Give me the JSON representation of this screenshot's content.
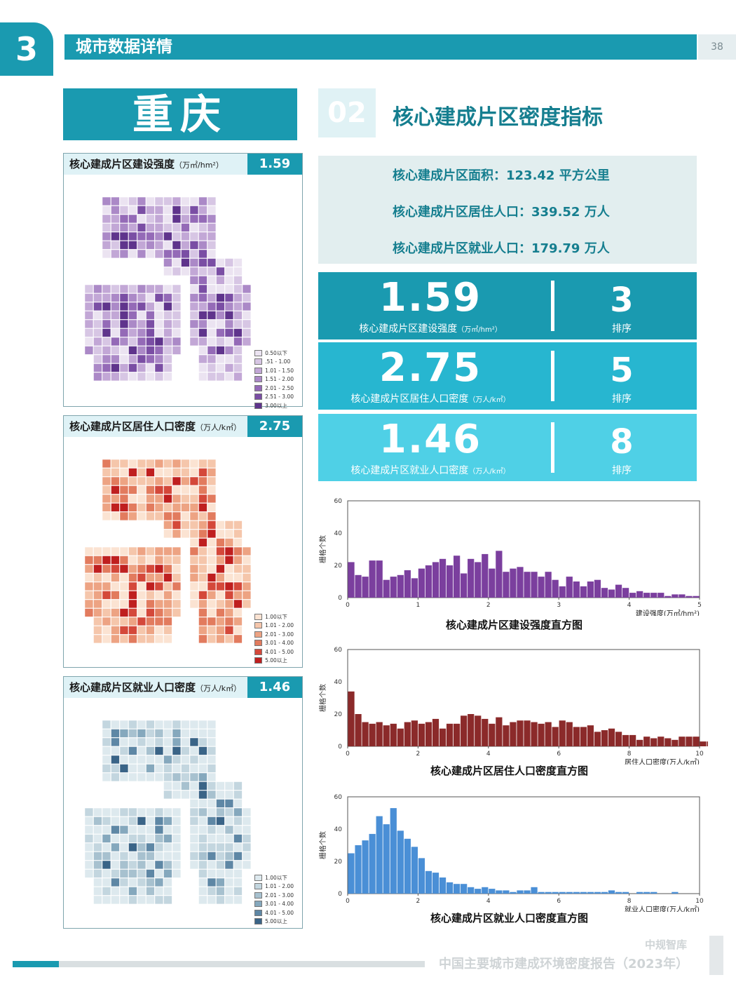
{
  "header": {
    "section_number": "3",
    "section_title": "城市数据详情",
    "page_number": "38"
  },
  "city": "重庆",
  "map_panels": [
    {
      "title": "核心建成片区建设强度",
      "unit": "（万㎡/hm²）",
      "value": "1.59",
      "color_scheme": "purple",
      "legend": [
        "0.50以下",
        ".51 - 1.00",
        "1.01 - 1.50",
        "1.51 - 2.00",
        "2.01 - 2.50",
        "2.51 - 3.00",
        "3.00以上"
      ],
      "colors": [
        "#ebe3f1",
        "#d7c6e4",
        "#c2a7d6",
        "#ab89c7",
        "#946ab7",
        "#7a4ea4",
        "#5f348c"
      ]
    },
    {
      "title": "核心建成片区居住人口密度",
      "unit": "（万人/k㎡）",
      "value": "2.75",
      "color_scheme": "red",
      "legend": [
        "1.00以下",
        "1.01 - 2.00",
        "2.01 - 3.00",
        "3.01 - 4.00",
        "4.01 - 5.00",
        "5.00以上"
      ],
      "colors": [
        "#fbe3d2",
        "#f5c6ab",
        "#eda383",
        "#e27b5e",
        "#d4483a",
        "#bf1f1f"
      ]
    },
    {
      "title": "核心建成片区就业人口密度",
      "unit": "（万人/k㎡）",
      "value": "1.46",
      "color_scheme": "blue",
      "legend": [
        "1.00以下",
        "1.01 - 2.00",
        "2.01 - 3.00",
        "3.01 - 4.00",
        "4.01 - 5.00",
        "5.00以上"
      ],
      "colors": [
        "#dde9ee",
        "#c3d6df",
        "#a7c1cf",
        "#85a8bd",
        "#5e87a5",
        "#3a6487"
      ]
    }
  ],
  "section02": {
    "number": "02",
    "title": "核心建成片区密度指标",
    "info": [
      "核心建成片区面积：123.42 平方公里",
      "核心建成片区居住人口：339.52 万人",
      "核心建成片区就业人口：179.79 万人"
    ],
    "stats": [
      {
        "value": "1.59",
        "label": "核心建成片区建设强度",
        "unit": "（万㎡/hm²）",
        "rank": "3",
        "rank_label": "排序",
        "color": "#1a9ab0"
      },
      {
        "value": "2.75",
        "label": "核心建成片区居住人口密度",
        "unit": "（万人/k㎡）",
        "rank": "5",
        "rank_label": "排序",
        "color": "#27b6d0"
      },
      {
        "value": "1.46",
        "label": "核心建成片区就业人口密度",
        "unit": "（万人/k㎡）",
        "rank": "8",
        "rank_label": "排序",
        "color": "#4fd0e6"
      }
    ]
  },
  "chart_data": [
    {
      "type": "bar",
      "title": "核心建成片区建设强度直方图",
      "xlabel": "建设强度(万㎡/hm²)",
      "ylabel": "栅格个数",
      "xlim": [
        0,
        5
      ],
      "ylim": [
        0,
        60
      ],
      "xticks": [
        "0",
        "1",
        "2",
        "3",
        "4",
        "5"
      ],
      "yticks": [
        "0",
        "20",
        "40",
        "60"
      ],
      "bin_width": 0.1,
      "color": "#7b3f9e",
      "values": [
        22,
        14,
        13,
        23,
        23,
        11,
        13,
        14,
        17,
        12,
        18,
        20,
        22,
        24,
        20,
        26,
        15,
        24,
        22,
        27,
        18,
        29,
        16,
        18,
        19,
        16,
        16,
        13,
        16,
        11,
        7,
        13,
        10,
        7,
        10,
        11,
        6,
        5,
        8,
        6,
        3,
        4,
        3,
        3,
        3,
        1,
        2,
        2,
        1,
        1,
        0,
        0,
        1,
        1,
        0,
        0,
        0,
        0,
        1,
        0,
        0,
        0,
        0,
        0,
        0,
        0,
        0,
        0,
        0,
        0,
        0,
        0,
        0,
        0,
        0,
        0,
        0,
        0,
        0,
        0,
        0,
        0,
        0,
        0,
        0,
        0,
        0,
        0,
        0,
        0,
        0,
        0,
        0,
        0,
        0,
        0,
        0,
        0,
        0,
        0
      ]
    },
    {
      "type": "bar",
      "title": "核心建成片区居住人口密度直方图",
      "xlabel": "居住人口密度(万人/k㎡)",
      "ylabel": "栅格个数",
      "xlim": [
        0,
        10
      ],
      "ylim": [
        0,
        60
      ],
      "xticks": [
        "0",
        "2",
        "4",
        "6",
        "8",
        "10"
      ],
      "yticks": [
        "0",
        "20",
        "40",
        "60"
      ],
      "bin_width": 0.2,
      "color": "#8b2a2a",
      "values": [
        34,
        20,
        15,
        14,
        15,
        13,
        14,
        11,
        15,
        16,
        14,
        15,
        17,
        11,
        14,
        14,
        19,
        20,
        19,
        17,
        14,
        18,
        13,
        15,
        16,
        16,
        15,
        14,
        15,
        12,
        16,
        15,
        12,
        12,
        13,
        9,
        10,
        11,
        9,
        7,
        7,
        4,
        6,
        5,
        6,
        5,
        4,
        6,
        6,
        6,
        3,
        3,
        3,
        3,
        2,
        2,
        2,
        2,
        0,
        0,
        0,
        0,
        0,
        0,
        0,
        0,
        0,
        0,
        0,
        0,
        0,
        0,
        0,
        0,
        0,
        0,
        0,
        0,
        0,
        0,
        0,
        0,
        0,
        0,
        0,
        0,
        0,
        0,
        0,
        0,
        0,
        0,
        0,
        0,
        0,
        0,
        0,
        0,
        0,
        0
      ]
    },
    {
      "type": "bar",
      "title": "核心建成片区就业人口密度直方图",
      "xlabel": "就业人口密度(万人/k㎡)",
      "ylabel": "栅格个数",
      "xlim": [
        0,
        10
      ],
      "ylim": [
        0,
        60
      ],
      "xticks": [
        "0",
        "2",
        "4",
        "6",
        "8",
        "10"
      ],
      "yticks": [
        "0",
        "20",
        "40",
        "60"
      ],
      "bin_width": 0.2,
      "color": "#4a8fd6",
      "values": [
        25,
        30,
        33,
        37,
        48,
        43,
        53,
        39,
        34,
        29,
        22,
        14,
        13,
        10,
        7,
        6,
        6,
        4,
        3,
        4,
        3,
        2,
        2,
        1,
        2,
        2,
        4,
        1,
        1,
        1,
        1,
        1,
        1,
        1,
        1,
        1,
        1,
        2,
        1,
        1,
        0,
        1,
        1,
        1,
        0,
        0,
        1,
        0,
        0,
        0,
        0,
        0,
        0,
        0,
        0,
        0,
        0,
        0,
        0,
        0,
        0,
        0,
        0,
        0,
        0,
        0,
        0,
        0,
        0,
        0,
        0,
        0,
        0,
        0,
        0,
        0,
        0,
        0,
        0,
        0,
        0,
        0,
        0,
        0,
        0,
        0,
        0,
        0,
        0,
        0,
        0,
        0,
        0,
        0,
        0,
        0,
        0,
        0,
        0,
        0
      ]
    }
  ],
  "footer": {
    "brand": "中规智库",
    "report_title": "中国主要城市建成环境密度报告（2023年）"
  }
}
